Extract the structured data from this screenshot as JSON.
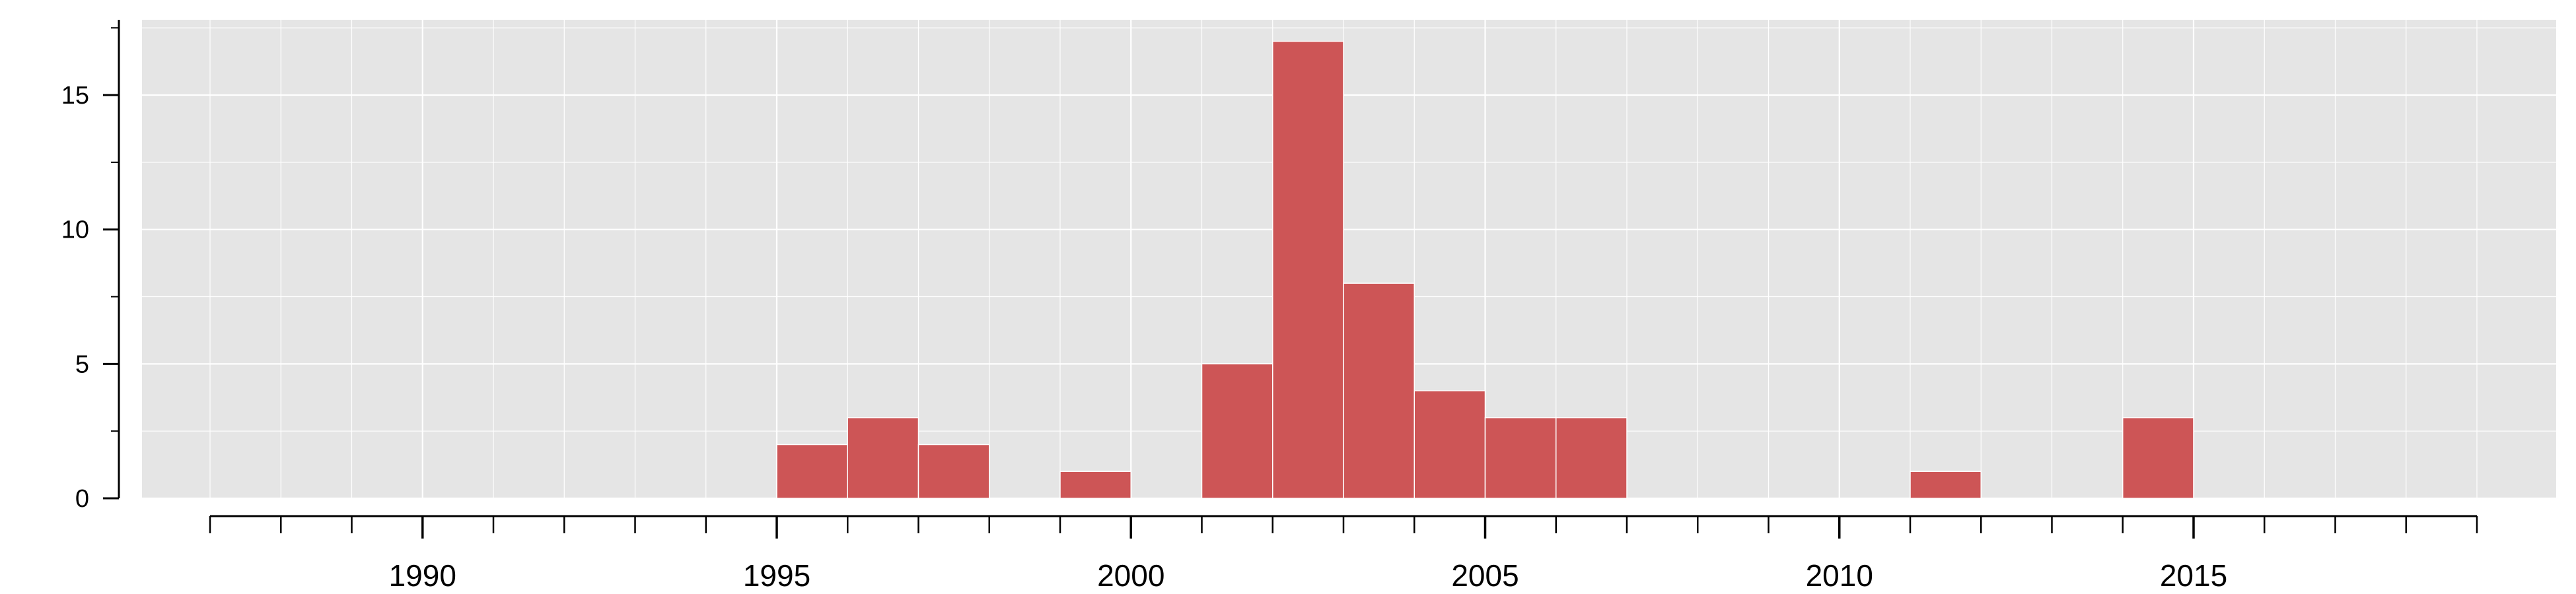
{
  "chart_data": {
    "type": "bar",
    "title": "",
    "xlabel": "",
    "ylabel": "",
    "x_bin_width": 1,
    "xlim": [
      1987,
      2019
    ],
    "ylim": [
      0,
      17.8
    ],
    "x_major_ticks": [
      1990,
      1995,
      2000,
      2005,
      2010,
      2015
    ],
    "x_minor_ticks": [
      1987,
      1988,
      1989,
      1990,
      1991,
      1992,
      1993,
      1994,
      1995,
      1996,
      1997,
      1998,
      1999,
      2000,
      2001,
      2002,
      2003,
      2004,
      2005,
      2006,
      2007,
      2008,
      2009,
      2010,
      2011,
      2012,
      2013,
      2014,
      2015,
      2016,
      2017,
      2018,
      2019
    ],
    "y_ticks": [
      0,
      5,
      10,
      15
    ],
    "bins": [
      {
        "start": 1995,
        "count": 2
      },
      {
        "start": 1996,
        "count": 3
      },
      {
        "start": 1997,
        "count": 2
      },
      {
        "start": 1999,
        "count": 1
      },
      {
        "start": 2001,
        "count": 5
      },
      {
        "start": 2002,
        "count": 17
      },
      {
        "start": 2003,
        "count": 8
      },
      {
        "start": 2004,
        "count": 4
      },
      {
        "start": 2005,
        "count": 3
      },
      {
        "start": 2006,
        "count": 3
      },
      {
        "start": 2011,
        "count": 1
      },
      {
        "start": 2014,
        "count": 3
      }
    ],
    "grid": true,
    "legend": "none",
    "colors": {
      "bar": "#cd5556",
      "panel": "#e5e5e5",
      "grid": "#ffffff"
    }
  }
}
